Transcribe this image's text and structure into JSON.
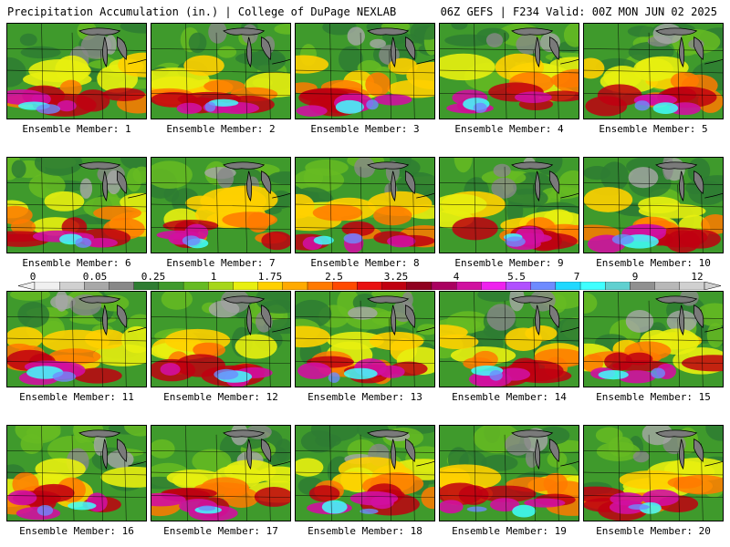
{
  "header": {
    "title_left": "Precipitation Accumulation (in.) | College of DuPage NEXLAB",
    "title_right": "06Z GEFS | F234 Valid: 00Z MON JUN 02 2025"
  },
  "panels": [
    {
      "label": "Ensemble Member: 1"
    },
    {
      "label": "Ensemble Member: 2"
    },
    {
      "label": "Ensemble Member: 3"
    },
    {
      "label": "Ensemble Member: 4"
    },
    {
      "label": "Ensemble Member: 5"
    },
    {
      "label": "Ensemble Member: 6"
    },
    {
      "label": "Ensemble Member: 7"
    },
    {
      "label": "Ensemble Member: 8"
    },
    {
      "label": "Ensemble Member: 9"
    },
    {
      "label": "Ensemble Member: 10"
    },
    {
      "label": "Ensemble Member: 11"
    },
    {
      "label": "Ensemble Member: 12"
    },
    {
      "label": "Ensemble Member: 13"
    },
    {
      "label": "Ensemble Member: 14"
    },
    {
      "label": "Ensemble Member: 15"
    },
    {
      "label": "Ensemble Member: 16"
    },
    {
      "label": "Ensemble Member: 17"
    },
    {
      "label": "Ensemble Member: 18"
    },
    {
      "label": "Ensemble Member: 19"
    },
    {
      "label": "Ensemble Member: 20"
    }
  ],
  "colorbar": {
    "labels": [
      "0",
      "0.05",
      "0.25",
      "1",
      "1.75",
      "2.5",
      "3.25",
      "4",
      "5.5",
      "7",
      "9",
      "12"
    ],
    "colors": [
      "#f0f0f0",
      "#d0d0d0",
      "#a8a8a8",
      "#888888",
      "#2e7d32",
      "#3f9a2c",
      "#66bb22",
      "#a6d61a",
      "#e8ef10",
      "#ffd000",
      "#ffaa00",
      "#ff7a00",
      "#ff4a00",
      "#e81010",
      "#c00010",
      "#900020",
      "#aa0060",
      "#d010a0",
      "#ee22ee",
      "#b050ff",
      "#6e8bff",
      "#20d8ff",
      "#40ffff",
      "#60d0d0",
      "#909090",
      "#b8b8b8",
      "#d0d0d0"
    ]
  }
}
